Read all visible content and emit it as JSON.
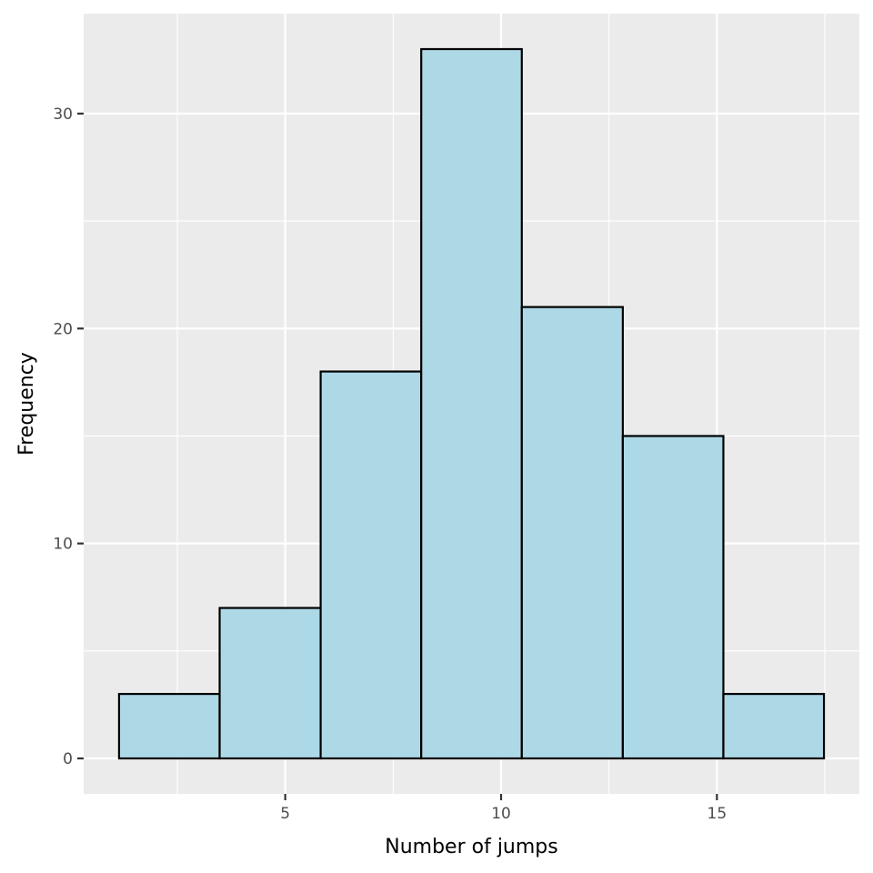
{
  "chart_data": {
    "type": "bar",
    "subtype": "histogram",
    "title": "",
    "xlabel": "Number of jumps",
    "ylabel": "Frequency",
    "bins": [
      {
        "x0": 1.15,
        "x1": 3.48,
        "count": 3
      },
      {
        "x0": 3.48,
        "x1": 5.82,
        "count": 7
      },
      {
        "x0": 5.82,
        "x1": 8.15,
        "count": 18
      },
      {
        "x0": 8.15,
        "x1": 10.48,
        "count": 33
      },
      {
        "x0": 10.48,
        "x1": 12.82,
        "count": 21
      },
      {
        "x0": 12.82,
        "x1": 15.15,
        "count": 15
      },
      {
        "x0": 15.15,
        "x1": 17.48,
        "count": 3
      }
    ],
    "xlim": [
      0.33,
      18.3
    ],
    "ylim": [
      -1.65,
      34.65
    ],
    "x_ticks": [
      5,
      10,
      15
    ],
    "x_minor_ticks": [
      2.5,
      7.5,
      12.5,
      17.5
    ],
    "y_ticks": [
      0,
      10,
      20,
      30
    ],
    "y_minor_ticks": [
      5,
      15,
      25
    ],
    "grid": true,
    "legend": "none",
    "colors": {
      "bar_fill": "#ADD8E6",
      "bar_stroke": "#000000",
      "panel_background": "#EBEBEB",
      "grid": "#FFFFFF",
      "tick_label": "#4D4D4D",
      "axis_title": "#000000"
    }
  }
}
